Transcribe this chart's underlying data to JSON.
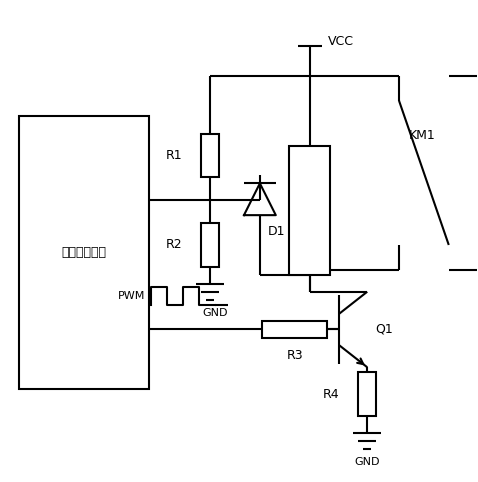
{
  "background_color": "#ffffff",
  "line_color": "#000000",
  "line_width": 1.5,
  "fig_width": 4.78,
  "fig_height": 4.82,
  "mc_label": "微处理器模块",
  "vcc_label": "VCC",
  "d1_label": "D1",
  "r1_label": "R1",
  "r2_label": "R2",
  "r3_label": "R3",
  "r4_label": "R4",
  "q1_label": "Q1",
  "km1_label": "KM1",
  "pwm_label": "PWM",
  "gnd_label": "GND"
}
